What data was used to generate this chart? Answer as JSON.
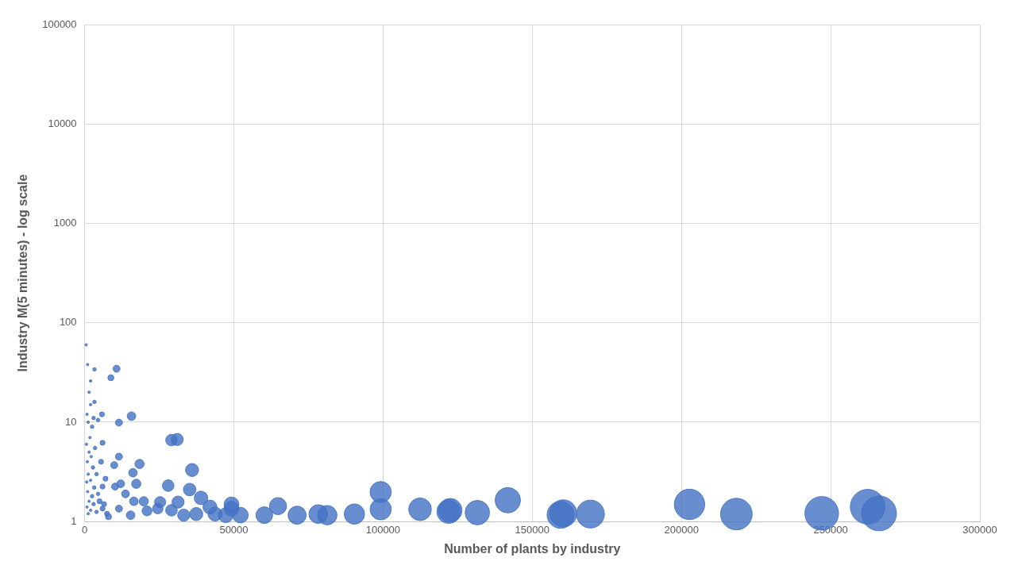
{
  "chart_data": {
    "type": "bubble",
    "xlabel": "Number of plants by industry",
    "ylabel": "Industry M(5 minutes) - log scale",
    "xlim": [
      0,
      300000
    ],
    "xticks": [
      0,
      50000,
      100000,
      150000,
      200000,
      250000,
      300000
    ],
    "ylim": [
      1,
      100000
    ],
    "yticks": [
      1,
      10,
      100,
      1000,
      10000,
      100000
    ],
    "log": "y",
    "grid": true,
    "legend": false,
    "series": [
      {
        "color": "#4472c4",
        "x": [
          262400,
          266200,
          247000,
          218400,
          202700,
          169500,
          160400,
          159500,
          141800,
          131600,
          122500,
          122000,
          112400,
          99200,
          99200,
          90400,
          81300,
          78300,
          71200,
          64800,
          60200,
          52200,
          49200,
          47300,
          43700,
          36000,
          35200,
          29100,
          31000,
          28000,
          39000,
          42000,
          31300,
          25300,
          19800,
          16500,
          18400,
          16200,
          17300,
          15700,
          11500,
          10700,
          8800,
          3300,
          11500,
          6000,
          5800,
          3300,
          9900,
          13700,
          10200,
          12100,
          6000,
          11500,
          15400,
          20900,
          24500,
          29100,
          33200,
          37400,
          49200,
          6000,
          8000,
          500,
          1000,
          1500,
          2000,
          800,
          1200,
          2500,
          1800,
          3000,
          600,
          1500,
          2200,
          3500,
          900,
          2800,
          1200,
          4000,
          700,
          2000,
          3200,
          1000,
          2500,
          4500,
          1500,
          3000,
          800,
          5000,
          2000,
          4000,
          1200,
          6500,
          7000,
          5500,
          4500,
          2000,
          7500
        ],
        "values": [
          1.41,
          1.21,
          1.21,
          1.19,
          1.49,
          1.19,
          1.21,
          1.17,
          1.64,
          1.23,
          1.3,
          1.26,
          1.33,
          1.98,
          1.33,
          1.19,
          1.16,
          1.19,
          1.16,
          1.43,
          1.16,
          1.16,
          1.49,
          1.16,
          1.19,
          3.3,
          2.1,
          6.6,
          6.7,
          2.3,
          1.73,
          1.4,
          1.57,
          1.57,
          1.6,
          1.6,
          3.8,
          3.1,
          2.4,
          11.5,
          9.9,
          34.5,
          28,
          34,
          4.5,
          6.2,
          12,
          16,
          3.7,
          1.9,
          2.25,
          2.4,
          2.25,
          1.35,
          1.16,
          1.28,
          1.35,
          1.3,
          1.16,
          1.19,
          1.35,
          1.35,
          1.12,
          60,
          38,
          20,
          15,
          12,
          10,
          9,
          7,
          11,
          6,
          5,
          4.5,
          5.5,
          4,
          3.5,
          3,
          3,
          2.5,
          2.6,
          2.2,
          2,
          1.8,
          1.9,
          1.6,
          1.5,
          1.4,
          1.6,
          1.3,
          1.25,
          1.2,
          1.5,
          2.7,
          4,
          10.5,
          26,
          1.2
        ],
        "sizes": [
          0.99,
          1,
          0.93,
          0.82,
          0.76,
          0.64,
          0.6,
          0.6,
          0.53,
          0.49,
          0.46,
          0.46,
          0.42,
          0.37,
          0.37,
          0.34,
          0.31,
          0.29,
          0.27,
          0.24,
          0.23,
          0.2,
          0.18,
          0.18,
          0.16,
          0.14,
          0.13,
          0.11,
          0.12,
          0.11,
          0.15,
          0.16,
          0.12,
          0.1,
          0.07,
          0.06,
          0.07,
          0.06,
          0.07,
          0.06,
          0.04,
          0.04,
          0.03,
          0.01,
          0.04,
          0.02,
          0.02,
          0.01,
          0.04,
          0.05,
          0.04,
          0.05,
          0.02,
          0.04,
          0.06,
          0.08,
          0.09,
          0.11,
          0.12,
          0.14,
          0.18,
          0.02,
          0.03,
          0.005,
          0.005,
          0.005,
          0.005,
          0.005,
          0.005,
          0.01,
          0.005,
          0.01,
          0.005,
          0.005,
          0.005,
          0.01,
          0.005,
          0.01,
          0.005,
          0.01,
          0.005,
          0.005,
          0.01,
          0.005,
          0.01,
          0.01,
          0.005,
          0.01,
          0.005,
          0.02,
          0.005,
          0.01,
          0.005,
          0.02,
          0.02,
          0.02,
          0.01,
          0.005,
          0.02
        ]
      }
    ]
  }
}
